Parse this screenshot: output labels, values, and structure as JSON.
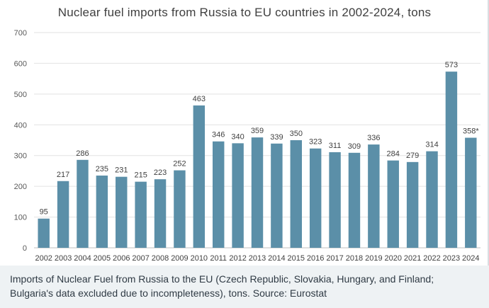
{
  "chart_data": {
    "type": "bar",
    "title": "Nuclear fuel imports from Russia to EU countries in 2002-2024, tons",
    "xlabel": "",
    "ylabel": "",
    "ylim": [
      0,
      700
    ],
    "yticks": [
      "0",
      "100",
      "200",
      "300",
      "400",
      "500",
      "600",
      "700"
    ],
    "grid": true,
    "bar_color": "#5b8fa8",
    "categories": [
      "2002",
      "2003",
      "2004",
      "2005",
      "2006",
      "2007",
      "2008",
      "2009",
      "2010",
      "2011",
      "2012",
      "2013",
      "2014",
      "2015",
      "2016",
      "2017",
      "2018",
      "2019",
      "2020",
      "2021",
      "2022",
      "2023",
      "2024"
    ],
    "values": [
      95,
      217,
      286,
      235,
      231,
      215,
      223,
      252,
      463,
      346,
      340,
      359,
      339,
      350,
      323,
      311,
      309,
      336,
      284,
      279,
      314,
      573,
      358
    ],
    "data_labels": [
      "95",
      "217",
      "286",
      "235",
      "231",
      "215",
      "223",
      "252",
      "463",
      "346",
      "340",
      "359",
      "339",
      "350",
      "323",
      "311",
      "309",
      "336",
      "284",
      "279",
      "314",
      "573",
      "358*"
    ]
  },
  "caption": "Imports of Nuclear Fuel from Russia to the EU (Czech Republic, Slovakia, Hungary, and Finland; Bulgaria's data excluded due to incompleteness), tons. Source: Eurostat"
}
